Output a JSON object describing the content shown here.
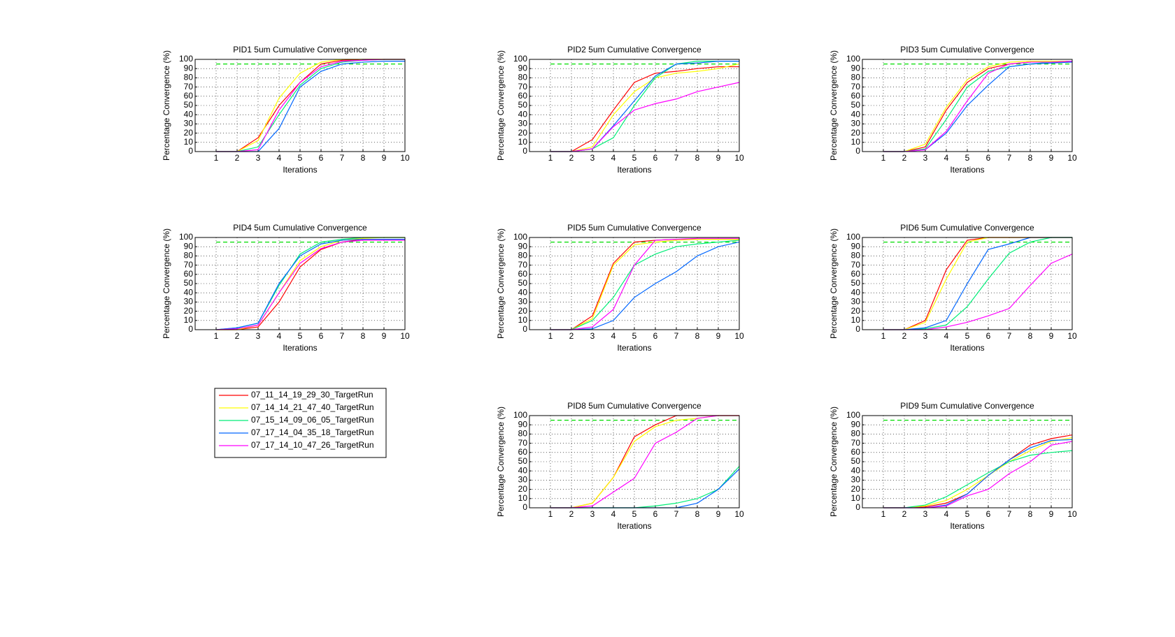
{
  "chart_data": [
    {
      "type": "line",
      "title": "PID1 5um Cumulative Convergence",
      "xlabel": "Iterations",
      "ylabel": "Percentage Convergence (%)",
      "x": [
        1,
        2,
        3,
        4,
        5,
        6,
        7,
        8,
        9,
        10
      ],
      "xlim": [
        0,
        10
      ],
      "xticks": [
        1,
        2,
        3,
        4,
        5,
        6,
        7,
        8,
        9,
        10
      ],
      "ylim": [
        0,
        100
      ],
      "yticks": [
        0,
        10,
        20,
        30,
        40,
        50,
        60,
        70,
        80,
        90,
        100
      ],
      "grid": true,
      "reference_line": {
        "value": 95,
        "color": "#00dd00"
      },
      "series": [
        {
          "name": "07_11_14_19_29_30_TargetRun",
          "color": "#ff0000",
          "values": [
            0,
            0,
            15,
            50,
            75,
            95,
            99,
            100,
            100,
            100
          ]
        },
        {
          "name": "07_14_14_21_47_40_TargetRun",
          "color": "#ffff00",
          "values": [
            0,
            0,
            12,
            58,
            85,
            97,
            100,
            100,
            100,
            100
          ]
        },
        {
          "name": "07_15_14_09_06_05_TargetRun",
          "color": "#00ee77",
          "values": [
            0,
            0,
            5,
            40,
            72,
            90,
            97,
            99,
            100,
            100
          ]
        },
        {
          "name": "07_17_14_04_35_18_TargetRun",
          "color": "#0066ff",
          "values": [
            0,
            0,
            0,
            25,
            70,
            87,
            95,
            97,
            98,
            98
          ]
        },
        {
          "name": "07_17_14_10_47_26_TargetRun",
          "color": "#ff00ff",
          "values": [
            0,
            0,
            2,
            45,
            75,
            92,
            98,
            99,
            100,
            100
          ]
        }
      ]
    },
    {
      "type": "line",
      "title": "PID2 5um Cumulative Convergence",
      "xlabel": "Iterations",
      "ylabel": "Percentage Convergence (%)",
      "x": [
        1,
        2,
        3,
        4,
        5,
        6,
        7,
        8,
        9,
        10
      ],
      "xlim": [
        0,
        10
      ],
      "xticks": [
        1,
        2,
        3,
        4,
        5,
        6,
        7,
        8,
        9,
        10
      ],
      "ylim": [
        0,
        100
      ],
      "yticks": [
        0,
        10,
        20,
        30,
        40,
        50,
        60,
        70,
        80,
        90,
        100
      ],
      "grid": true,
      "reference_line": {
        "value": 95,
        "color": "#00dd00"
      },
      "series": [
        {
          "name": "07_11_14_19_29_30_TargetRun",
          "color": "#ff0000",
          "values": [
            0,
            0,
            13,
            45,
            75,
            85,
            87,
            90,
            92,
            92
          ]
        },
        {
          "name": "07_14_14_21_47_40_TargetRun",
          "color": "#ffff00",
          "values": [
            0,
            0,
            5,
            40,
            65,
            80,
            85,
            87,
            90,
            95
          ]
        },
        {
          "name": "07_15_14_09_06_05_TargetRun",
          "color": "#00ee77",
          "values": [
            0,
            0,
            3,
            15,
            50,
            80,
            95,
            98,
            98,
            98
          ]
        },
        {
          "name": "07_17_14_04_35_18_TargetRun",
          "color": "#0066ff",
          "values": [
            0,
            0,
            3,
            28,
            55,
            82,
            95,
            96,
            98,
            98
          ]
        },
        {
          "name": "07_17_14_10_47_26_TargetRun",
          "color": "#ff00ff",
          "values": [
            0,
            0,
            3,
            27,
            45,
            52,
            57,
            65,
            70,
            75
          ]
        }
      ]
    },
    {
      "type": "line",
      "title": "PID3 5um Cumulative Convergence",
      "xlabel": "Iterations",
      "ylabel": "Percentage Convergence (%)",
      "x": [
        1,
        2,
        3,
        4,
        5,
        6,
        7,
        8,
        9,
        10
      ],
      "xlim": [
        0,
        10
      ],
      "xticks": [
        1,
        2,
        3,
        4,
        5,
        6,
        7,
        8,
        9,
        10
      ],
      "ylim": [
        0,
        100
      ],
      "yticks": [
        0,
        10,
        20,
        30,
        40,
        50,
        60,
        70,
        80,
        90,
        100
      ],
      "grid": true,
      "reference_line": {
        "value": 95,
        "color": "#00dd00"
      },
      "series": [
        {
          "name": "07_11_14_19_29_30_TargetRun",
          "color": "#ff0000",
          "values": [
            0,
            0,
            5,
            45,
            75,
            90,
            95,
            97,
            97,
            97
          ]
        },
        {
          "name": "07_14_14_21_47_40_TargetRun",
          "color": "#ffff00",
          "values": [
            0,
            0,
            8,
            48,
            78,
            92,
            97,
            98,
            98,
            98
          ]
        },
        {
          "name": "07_15_14_09_06_05_TargetRun",
          "color": "#00ee77",
          "values": [
            0,
            0,
            3,
            35,
            70,
            87,
            92,
            95,
            97,
            98
          ]
        },
        {
          "name": "07_17_14_04_35_18_TargetRun",
          "color": "#0066ff",
          "values": [
            0,
            0,
            2,
            20,
            50,
            72,
            92,
            95,
            96,
            97
          ]
        },
        {
          "name": "07_17_14_10_47_26_TargetRun",
          "color": "#ff00ff",
          "values": [
            0,
            0,
            2,
            22,
            55,
            85,
            95,
            97,
            97,
            98
          ]
        }
      ]
    },
    {
      "type": "line",
      "title": "PID4 5um Cumulative Convergence",
      "xlabel": "Iterations",
      "ylabel": "Percentage Convergence (%)",
      "x": [
        1,
        2,
        3,
        4,
        5,
        6,
        7,
        8,
        9,
        10
      ],
      "xlim": [
        0,
        10
      ],
      "xticks": [
        1,
        2,
        3,
        4,
        5,
        6,
        7,
        8,
        9,
        10
      ],
      "ylim": [
        0,
        100
      ],
      "yticks": [
        0,
        10,
        20,
        30,
        40,
        50,
        60,
        70,
        80,
        90,
        100
      ],
      "grid": true,
      "reference_line": {
        "value": 95,
        "color": "#00dd00"
      },
      "series": [
        {
          "name": "07_11_14_19_29_30_TargetRun",
          "color": "#ff0000",
          "values": [
            0,
            0,
            3,
            30,
            68,
            87,
            95,
            98,
            98,
            98
          ]
        },
        {
          "name": "07_14_14_21_47_40_TargetRun",
          "color": "#ffff00",
          "values": [
            0,
            0,
            5,
            40,
            75,
            90,
            97,
            99,
            100,
            100
          ]
        },
        {
          "name": "07_15_14_09_06_05_TargetRun",
          "color": "#00ee77",
          "values": [
            0,
            2,
            7,
            48,
            82,
            95,
            98,
            100,
            100,
            100
          ]
        },
        {
          "name": "07_17_14_04_35_18_TargetRun",
          "color": "#0066ff",
          "values": [
            0,
            2,
            7,
            50,
            80,
            93,
            97,
            98,
            98,
            98
          ]
        },
        {
          "name": "07_17_14_10_47_26_TargetRun",
          "color": "#ff00ff",
          "values": [
            0,
            1,
            5,
            40,
            72,
            88,
            95,
            97,
            97,
            97
          ]
        }
      ]
    },
    {
      "type": "line",
      "title": "PID5 5um Cumulative Convergence",
      "xlabel": "Iterations",
      "ylabel": "Percentage Convergence (%)",
      "x": [
        1,
        2,
        3,
        4,
        5,
        6,
        7,
        8,
        9,
        10
      ],
      "xlim": [
        0,
        10
      ],
      "xticks": [
        1,
        2,
        3,
        4,
        5,
        6,
        7,
        8,
        9,
        10
      ],
      "ylim": [
        0,
        100
      ],
      "yticks": [
        0,
        10,
        20,
        30,
        40,
        50,
        60,
        70,
        80,
        90,
        100
      ],
      "grid": true,
      "reference_line": {
        "value": 95,
        "color": "#00dd00"
      },
      "series": [
        {
          "name": "07_11_14_19_29_30_TargetRun",
          "color": "#ff0000",
          "values": [
            0,
            0,
            15,
            72,
            95,
            97,
            98,
            98,
            98,
            98
          ]
        },
        {
          "name": "07_14_14_21_47_40_TargetRun",
          "color": "#ffff00",
          "values": [
            0,
            0,
            12,
            70,
            92,
            95,
            97,
            98,
            98,
            98
          ]
        },
        {
          "name": "07_15_14_09_06_05_TargetRun",
          "color": "#00ee77",
          "values": [
            0,
            0,
            10,
            35,
            70,
            82,
            90,
            93,
            95,
            97
          ]
        },
        {
          "name": "07_17_14_04_35_18_TargetRun",
          "color": "#0066ff",
          "values": [
            0,
            0,
            1,
            10,
            35,
            50,
            63,
            80,
            90,
            95
          ]
        },
        {
          "name": "07_17_14_10_47_26_TargetRun",
          "color": "#ff00ff",
          "values": [
            0,
            0,
            3,
            22,
            70,
            97,
            98,
            99,
            99,
            99
          ]
        }
      ]
    },
    {
      "type": "line",
      "title": "PID6 5um Cumulative Convergence",
      "xlabel": "Iterations",
      "ylabel": "Percentage Convergence (%)",
      "x": [
        1,
        2,
        3,
        4,
        5,
        6,
        7,
        8,
        9,
        10
      ],
      "xlim": [
        0,
        10
      ],
      "xticks": [
        1,
        2,
        3,
        4,
        5,
        6,
        7,
        8,
        9,
        10
      ],
      "ylim": [
        0,
        100
      ],
      "yticks": [
        0,
        10,
        20,
        30,
        40,
        50,
        60,
        70,
        80,
        90,
        100
      ],
      "grid": true,
      "reference_line": {
        "value": 95,
        "color": "#00dd00"
      },
      "series": [
        {
          "name": "07_11_14_19_29_30_TargetRun",
          "color": "#ff0000",
          "values": [
            0,
            0,
            10,
            65,
            97,
            100,
            100,
            100,
            100,
            100
          ]
        },
        {
          "name": "07_14_14_21_47_40_TargetRun",
          "color": "#ffff00",
          "values": [
            0,
            0,
            8,
            55,
            95,
            100,
            100,
            100,
            100,
            100
          ]
        },
        {
          "name": "07_15_14_09_06_05_TargetRun",
          "color": "#00ee77",
          "values": [
            0,
            0,
            1,
            5,
            25,
            55,
            83,
            95,
            100,
            100
          ]
        },
        {
          "name": "07_17_14_04_35_18_TargetRun",
          "color": "#0066ff",
          "values": [
            0,
            0,
            2,
            10,
            50,
            87,
            93,
            100,
            100,
            100
          ]
        },
        {
          "name": "07_17_14_10_47_26_TargetRun",
          "color": "#ff00ff",
          "values": [
            0,
            0,
            0,
            3,
            8,
            15,
            23,
            48,
            72,
            82
          ]
        }
      ]
    },
    {
      "type": "line",
      "title": "PID8 5um Cumulative Convergence",
      "xlabel": "Iterations",
      "ylabel": "Percentage Convergence (%)",
      "x": [
        1,
        2,
        3,
        4,
        5,
        6,
        7,
        8,
        9,
        10
      ],
      "xlim": [
        0,
        10
      ],
      "xticks": [
        1,
        2,
        3,
        4,
        5,
        6,
        7,
        8,
        9,
        10
      ],
      "ylim": [
        0,
        100
      ],
      "yticks": [
        0,
        10,
        20,
        30,
        40,
        50,
        60,
        70,
        80,
        90,
        100
      ],
      "grid": true,
      "reference_line": {
        "value": 95,
        "color": "#00dd00"
      },
      "series": [
        {
          "name": "07_11_14_19_29_30_TargetRun",
          "color": "#ff0000",
          "values": [
            0,
            0,
            5,
            33,
            77,
            90,
            100,
            100,
            100,
            100
          ]
        },
        {
          "name": "07_14_14_21_47_40_TargetRun",
          "color": "#ffff00",
          "values": [
            0,
            0,
            5,
            33,
            72,
            88,
            95,
            97,
            100,
            100
          ]
        },
        {
          "name": "07_15_14_09_06_05_TargetRun",
          "color": "#00ee77",
          "values": [
            0,
            0,
            0,
            0,
            0,
            2,
            5,
            10,
            20,
            45
          ]
        },
        {
          "name": "07_17_14_04_35_18_TargetRun",
          "color": "#0066ff",
          "values": [
            0,
            0,
            0,
            0,
            0,
            0,
            0,
            5,
            20,
            42
          ]
        },
        {
          "name": "07_17_14_10_47_26_TargetRun",
          "color": "#ff00ff",
          "values": [
            0,
            0,
            2,
            17,
            32,
            70,
            82,
            97,
            100,
            100
          ]
        }
      ]
    },
    {
      "type": "line",
      "title": "PID9 5um Cumulative Convergence",
      "xlabel": "Iterations",
      "ylabel": "Percentage Convergence (%)",
      "x": [
        1,
        2,
        3,
        4,
        5,
        6,
        7,
        8,
        9,
        10
      ],
      "xlim": [
        0,
        10
      ],
      "xticks": [
        1,
        2,
        3,
        4,
        5,
        6,
        7,
        8,
        9,
        10
      ],
      "ylim": [
        0,
        100
      ],
      "yticks": [
        0,
        10,
        20,
        30,
        40,
        50,
        60,
        70,
        80,
        90,
        100
      ],
      "grid": true,
      "reference_line": {
        "value": 95,
        "color": "#00dd00"
      },
      "series": [
        {
          "name": "07_11_14_19_29_30_TargetRun",
          "color": "#ff0000",
          "values": [
            0,
            0,
            1,
            5,
            15,
            35,
            52,
            68,
            75,
            79
          ]
        },
        {
          "name": "07_14_14_21_47_40_TargetRun",
          "color": "#ffff00",
          "values": [
            0,
            0,
            2,
            8,
            20,
            35,
            50,
            62,
            72,
            76
          ]
        },
        {
          "name": "07_15_14_09_06_05_TargetRun",
          "color": "#00ee77",
          "values": [
            0,
            0,
            3,
            12,
            25,
            38,
            50,
            57,
            60,
            62
          ]
        },
        {
          "name": "07_17_14_04_35_18_TargetRun",
          "color": "#0066ff",
          "values": [
            0,
            0,
            0,
            3,
            15,
            35,
            52,
            65,
            73,
            74
          ]
        },
        {
          "name": "07_17_14_10_47_26_TargetRun",
          "color": "#ff00ff",
          "values": [
            0,
            0,
            0,
            2,
            13,
            20,
            37,
            50,
            68,
            72
          ]
        }
      ]
    }
  ]
}
